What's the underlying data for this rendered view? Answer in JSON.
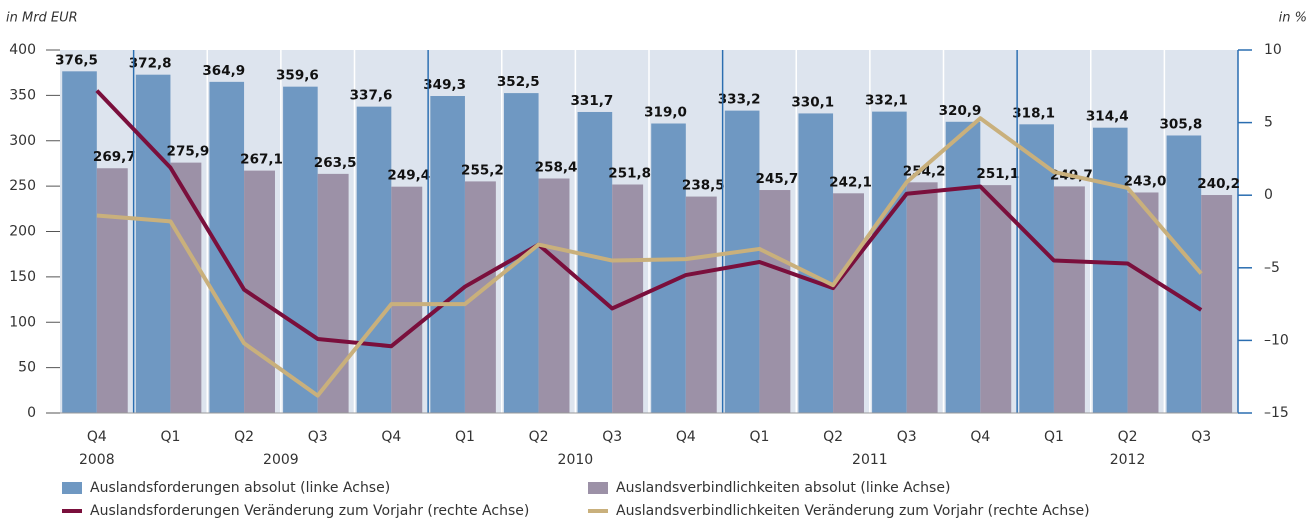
{
  "chart_data": {
    "type": "bar",
    "y_axis_label": "in Mrd EUR",
    "y2_axis_label": "in %",
    "categories": [
      "Q4",
      "Q1",
      "Q2",
      "Q3",
      "Q4",
      "Q1",
      "Q2",
      "Q3",
      "Q4",
      "Q1",
      "Q2",
      "Q3",
      "Q4",
      "Q1",
      "Q2",
      "Q3"
    ],
    "groups": [
      {
        "label": "2008",
        "size": 1
      },
      {
        "label": "2009",
        "size": 4
      },
      {
        "label": "2010",
        "size": 4
      },
      {
        "label": "2011",
        "size": 4
      },
      {
        "label": "2012",
        "size": 3
      }
    ],
    "ylim": [
      0,
      400
    ],
    "yticks": [
      0,
      50,
      100,
      150,
      200,
      250,
      300,
      350,
      400
    ],
    "y2lim": [
      -15,
      10
    ],
    "y2ticks": [
      {
        "value": -15,
        "label": "–15"
      },
      {
        "value": -10,
        "label": "–10"
      },
      {
        "value": -5,
        "label": "–5"
      },
      0,
      5,
      10
    ],
    "series": [
      {
        "name": "Auslandsforderungen absolut  (linke Achse)",
        "type": "bar",
        "color": "#6f98c2",
        "values": [
          376.5,
          372.8,
          364.9,
          359.6,
          337.6,
          349.3,
          352.5,
          331.7,
          319.0,
          333.2,
          330.1,
          332.1,
          320.9,
          318.1,
          314.4,
          305.8
        ],
        "value_labels": [
          "376,5",
          "372,8",
          "364,9",
          "359,6",
          "337,6",
          "349,3",
          "352,5",
          "331,7",
          "319,0",
          "333,2",
          "330,1",
          "332,1",
          "320,9",
          "318,1",
          "314,4",
          "305,8"
        ]
      },
      {
        "name": "Auslandsverbindlichkeiten absolut (linke Achse)",
        "type": "bar",
        "color": "#9c91a7",
        "values": [
          269.7,
          275.9,
          267.1,
          263.5,
          249.4,
          255.2,
          258.4,
          251.8,
          238.5,
          245.7,
          242.1,
          254.2,
          251.1,
          249.7,
          243.0,
          240.2
        ],
        "value_labels": [
          "269,7",
          "275,9",
          "267,1",
          "263,5",
          "249,4",
          "255,2",
          "258,4",
          "251,8",
          "238,5",
          "245,7",
          "242,1",
          "254,2",
          "251,1",
          "249,7",
          "243,0",
          "240,2"
        ]
      },
      {
        "name": "Auslandsforderungen Veränderung zum Vorjahr (rechte Achse)",
        "type": "line",
        "axis": "y2",
        "color": "#7a0f3c",
        "values": [
          7.2,
          1.9,
          -6.5,
          -9.9,
          -10.4,
          -6.3,
          -3.4,
          -7.8,
          -5.5,
          -4.6,
          -6.4,
          0.1,
          0.6,
          -4.5,
          -4.7,
          -7.9
        ]
      },
      {
        "name": "Auslandsverbindlichkeiten Veränderung zum Vorjahr (rechte Achse)",
        "type": "line",
        "axis": "y2",
        "color": "#c9b07c",
        "values": [
          -1.4,
          -1.8,
          -10.2,
          -13.8,
          -7.5,
          -7.5,
          -3.4,
          -4.5,
          -4.4,
          -3.7,
          -6.2,
          0.9,
          5.3,
          1.6,
          0.5,
          -5.4
        ]
      }
    ]
  }
}
